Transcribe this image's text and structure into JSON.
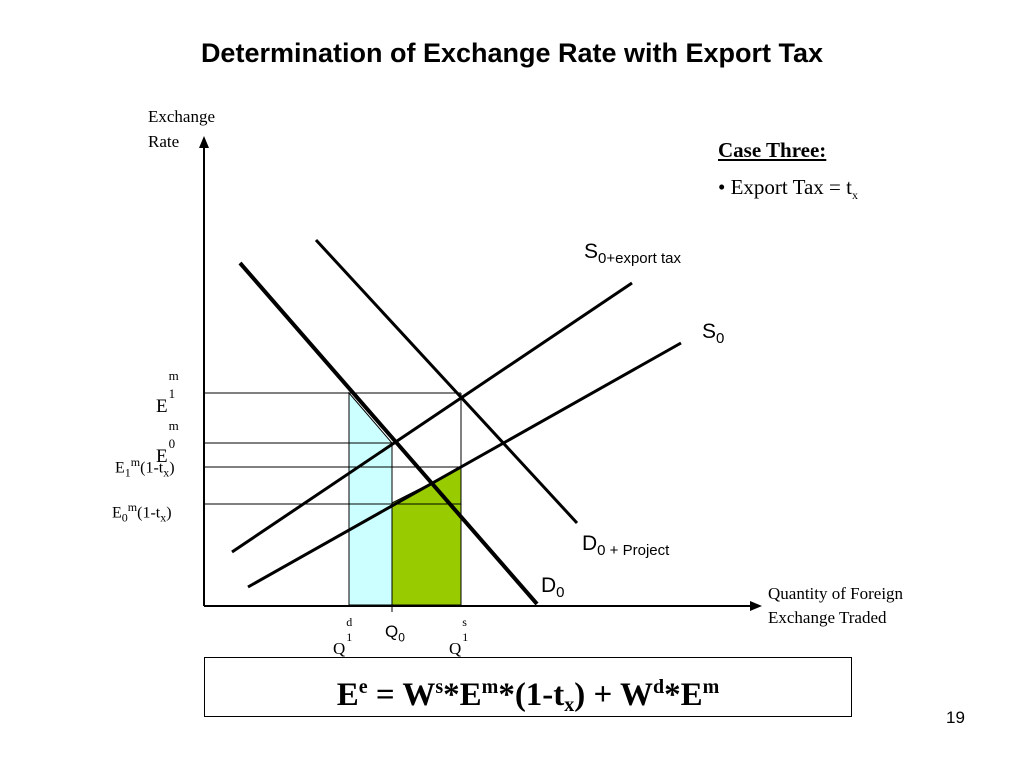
{
  "slide": {
    "title": "Determination of Exchange Rate with Export Tax",
    "page_number": "19"
  },
  "axes": {
    "y_label_line1": "Exchange",
    "y_label_line2": "Rate",
    "x_label_line1": "Quantity of Foreign",
    "x_label_line2": "Exchange  Traded"
  },
  "case": {
    "title": "Case Three:",
    "bullet_prefix": "• Export Tax = t",
    "bullet_sub": "x"
  },
  "curves": {
    "s_tax_main": "S",
    "s_tax_sub": "0+export tax",
    "s0_main": "S",
    "s0_sub": "0",
    "d_project_main": "D",
    "d_project_sub": "0 + Project",
    "d0_main": "D",
    "d0_sub": "0"
  },
  "y_ticks": {
    "e1m_base": "E",
    "e1m_sup": "m",
    "e1m_sub": "1",
    "e0m_base": "E",
    "e0m_sup": "m",
    "e0m_sub": "0",
    "e1tax_a": "E",
    "e1tax_sub": "1",
    "e1tax_sup": "m",
    "e1tax_b": "(1-t",
    "e1tax_xsub": "x",
    "e1tax_c": ")",
    "e0tax_a": "E",
    "e0tax_sub": "0",
    "e0tax_sup": "m",
    "e0tax_b": "(1-t",
    "e0tax_xsub": "x",
    "e0tax_c": ")"
  },
  "x_ticks": {
    "q1d_base": "Q",
    "q1d_sup": "d",
    "q1d_sub": "1",
    "q0_base": "Q",
    "q0_sub": "0",
    "q1s_base": "Q",
    "q1s_sup": "s",
    "q1s_sub": "1"
  },
  "formula": {
    "a": "E",
    "a_sup": "e",
    "b": " = W",
    "b_sup": "s",
    "c": "*E",
    "c_sup": "m",
    "d": "*(1-t",
    "d_sub": "x",
    "e": ") + W",
    "e_sup": "d",
    "f": "*E",
    "f_sup": "m"
  },
  "colors": {
    "light_cyan_area": "#ccffff",
    "green_area": "#99cc00",
    "lines": "#000000"
  }
}
